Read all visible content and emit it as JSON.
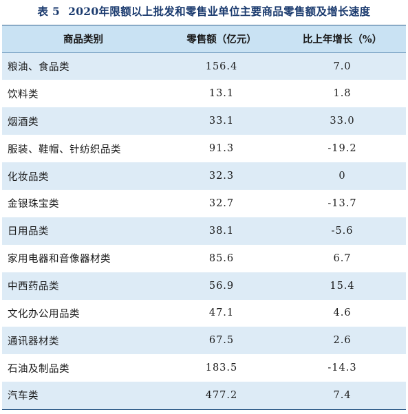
{
  "table": {
    "caption_prefix": "表 5",
    "caption_text": "2020年限额以上批发和零售业单位主要商品零售额及增长速度",
    "headers": {
      "category": "商品类别",
      "retail_sales": "零售额（亿元）",
      "growth": "比上年增长（%）"
    },
    "rows": [
      {
        "category": "粮油、食品类",
        "retail_sales": "156.4",
        "growth": "7.0"
      },
      {
        "category": "饮料类",
        "retail_sales": "13.1",
        "growth": "1.8"
      },
      {
        "category": "烟酒类",
        "retail_sales": "33.1",
        "growth": "33.0"
      },
      {
        "category": "服装、鞋帽、针纺织品类",
        "retail_sales": "91.3",
        "growth": "-19.2"
      },
      {
        "category": "化妆品类",
        "retail_sales": "32.3",
        "growth": "0"
      },
      {
        "category": "金银珠宝类",
        "retail_sales": "32.7",
        "growth": "-13.7"
      },
      {
        "category": "日用品类",
        "retail_sales": "38.1",
        "growth": "-5.6"
      },
      {
        "category": "家用电器和音像器材类",
        "retail_sales": "85.6",
        "growth": "6.7"
      },
      {
        "category": "中西药品类",
        "retail_sales": "56.9",
        "growth": "15.4"
      },
      {
        "category": "文化办公用品类",
        "retail_sales": "47.1",
        "growth": "4.6"
      },
      {
        "category": "通讯器材类",
        "retail_sales": "67.5",
        "growth": "2.6"
      },
      {
        "category": "石油及制品类",
        "retail_sales": "183.5",
        "growth": "-14.3"
      },
      {
        "category": "汽车类",
        "retail_sales": "477.2",
        "growth": "7.4"
      }
    ]
  },
  "colors": {
    "title": "#1a3a6e",
    "header_bg": "#c9e2f3",
    "row_shade": "#ddebf6",
    "rule": "#2f5d8a"
  }
}
